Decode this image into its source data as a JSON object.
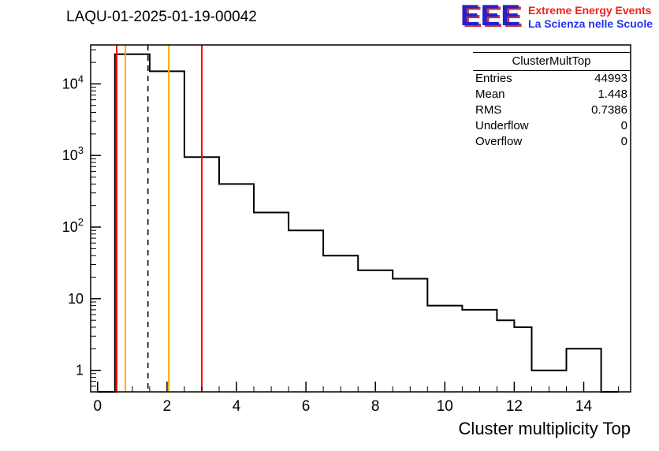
{
  "header": {
    "title": "LAQU-01-2025-01-19-00042",
    "logo": {
      "text": "EEE",
      "line1": "Extreme Energy Events",
      "line2": "La Scienza nelle Scuole",
      "eee_color": "#2222cc",
      "line1_color": "#ee2222",
      "line2_color": "#2233ee"
    }
  },
  "stats": {
    "title": "ClusterMultTop",
    "rows": [
      {
        "label": "Entries",
        "value": "44993"
      },
      {
        "label": "Mean",
        "value": "1.448"
      },
      {
        "label": "RMS",
        "value": "0.7386"
      },
      {
        "label": "Underflow",
        "value": "0"
      },
      {
        "label": "Overflow",
        "value": "0"
      }
    ]
  },
  "chart_data": {
    "type": "bar",
    "subtype": "step-histogram",
    "title": "LAQU-01-2025-01-19-00042",
    "bin_start": 0,
    "bin_width": 0.5,
    "counts": [
      0,
      26000,
      26000,
      15000,
      15000,
      950,
      950,
      400,
      400,
      160,
      160,
      90,
      90,
      40,
      40,
      25,
      25,
      19,
      19,
      8,
      8,
      7,
      7,
      5,
      4,
      1,
      1,
      2,
      2,
      0
    ],
    "line_color": "#000000",
    "x_axis": {
      "label": "Cluster multiplicity Top",
      "min": -0.2,
      "max": 15.35,
      "major_ticks": [
        0,
        2,
        4,
        6,
        8,
        10,
        12,
        14
      ],
      "minor_step": 0.5
    },
    "y_axis": {
      "scale": "log",
      "min": 0.5,
      "max": 35000,
      "decade_exponents": [
        0,
        1,
        2,
        3,
        4
      ],
      "grid": false
    },
    "marker_lines": [
      {
        "x": 0.55,
        "color": "#ff0000",
        "style": "solid"
      },
      {
        "x": 0.8,
        "color": "#ffaa00",
        "style": "solid"
      },
      {
        "x": 1.45,
        "color": "#000000",
        "style": "dashed"
      },
      {
        "x": 2.05,
        "color": "#ffaa00",
        "style": "solid"
      },
      {
        "x": 3.0,
        "color": "#ff0000",
        "style": "solid"
      }
    ],
    "legend": "none"
  }
}
